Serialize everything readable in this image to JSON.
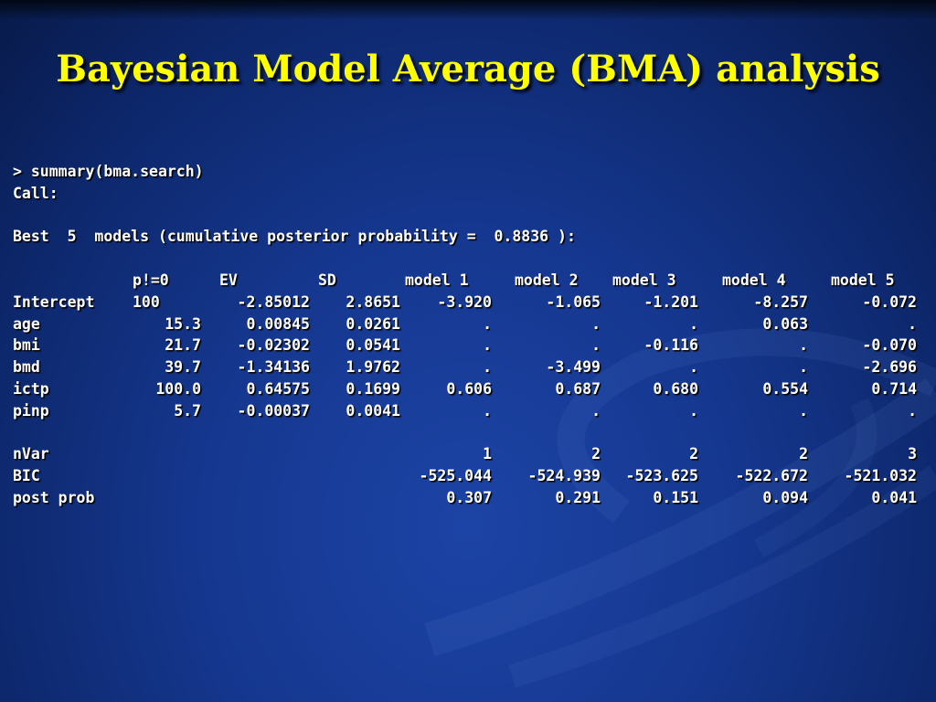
{
  "slide": {
    "title": "Bayesian Model Average (BMA) analysis"
  },
  "console": {
    "command": "> summary(bma.search)",
    "call": "Call:",
    "best_line": "Best  5  models (cumulative posterior probability =  0.8836 ):",
    "table": {
      "headers": [
        "p!=0",
        "EV",
        "SD",
        "model 1",
        "model 2",
        "model 3",
        "model 4",
        "model 5"
      ],
      "rows": [
        {
          "label": "Intercept",
          "pne": "100",
          "ev": "-2.85012",
          "sd": "2.8651",
          "m1": "-3.920",
          "m2": "-1.065",
          "m3": "-1.201",
          "m4": "-8.257",
          "m5": "-0.072"
        },
        {
          "label": "age",
          "pne": "15.3",
          "ev": "0.00845",
          "sd": "0.0261",
          "m1": ".",
          "m2": ".",
          "m3": ".",
          "m4": "0.063",
          "m5": "."
        },
        {
          "label": "bmi",
          "pne": "21.7",
          "ev": "-0.02302",
          "sd": "0.0541",
          "m1": ".",
          "m2": ".",
          "m3": "-0.116",
          "m4": ".",
          "m5": "-0.070"
        },
        {
          "label": "bmd",
          "pne": "39.7",
          "ev": "-1.34136",
          "sd": "1.9762",
          "m1": ".",
          "m2": "-3.499",
          "m3": ".",
          "m4": ".",
          "m5": "-2.696"
        },
        {
          "label": "ictp",
          "pne": "100.0",
          "ev": "0.64575",
          "sd": "0.1699",
          "m1": "0.606",
          "m2": "0.687",
          "m3": "0.680",
          "m4": "0.554",
          "m5": "0.714"
        },
        {
          "label": "pinp",
          "pne": "5.7",
          "ev": "-0.00037",
          "sd": "0.0041",
          "m1": ".",
          "m2": ".",
          "m3": ".",
          "m4": ".",
          "m5": "."
        }
      ],
      "summary_rows": [
        {
          "label": "nVar",
          "m1": "1",
          "m2": "2",
          "m3": "2",
          "m4": "2",
          "m5": "3"
        },
        {
          "label": "BIC",
          "m1": "-525.044",
          "m2": "-524.939",
          "m3": "-523.625",
          "m4": "-522.672",
          "m5": "-521.032"
        },
        {
          "label": "post prob",
          "m1": "0.307",
          "m2": "0.291",
          "m3": "0.151",
          "m4": "0.094",
          "m5": "0.041"
        }
      ]
    }
  },
  "colors": {
    "title": "#ffff00",
    "text": "#ffffff",
    "background": "#15378f"
  }
}
